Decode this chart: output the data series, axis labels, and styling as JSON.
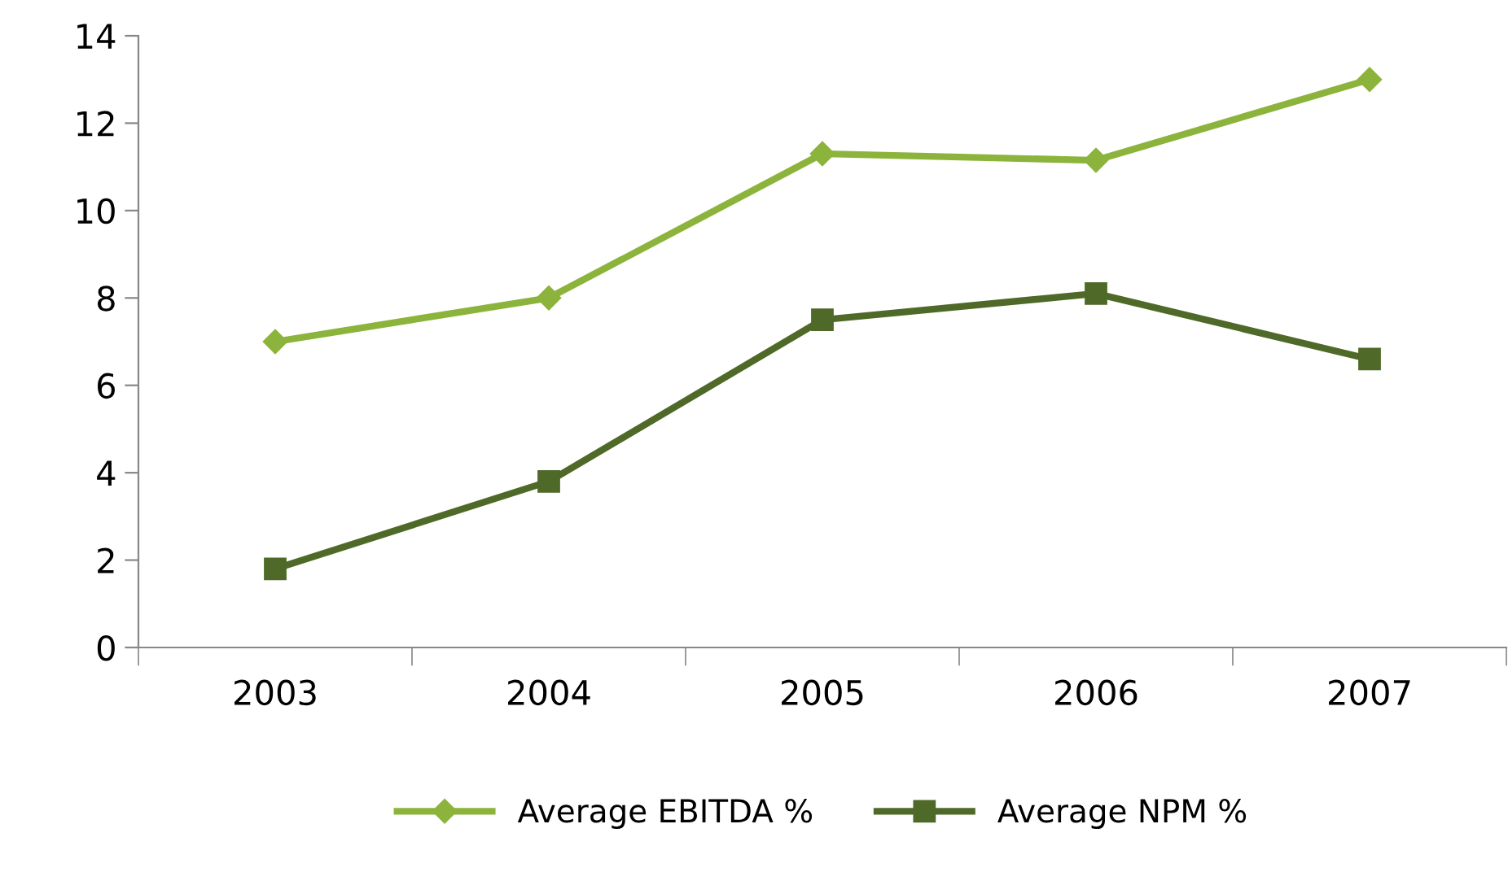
{
  "chart_data": {
    "type": "line",
    "categories": [
      "2003",
      "2004",
      "2005",
      "2006",
      "2007"
    ],
    "series": [
      {
        "name": "Average EBITDA %",
        "color": "#8cb43c",
        "values": [
          7.0,
          8.0,
          11.3,
          11.15,
          13.0
        ],
        "marker": "diamond"
      },
      {
        "name": "Average NPM %",
        "color": "#4f6a28",
        "values": [
          1.8,
          3.8,
          7.5,
          8.1,
          6.6
        ],
        "marker": "square"
      }
    ],
    "ylim": [
      0,
      14
    ],
    "yticks": [
      0,
      2,
      4,
      6,
      8,
      10,
      12,
      14
    ],
    "grid": false,
    "legend": "bottom",
    "line_style": "solid"
  }
}
